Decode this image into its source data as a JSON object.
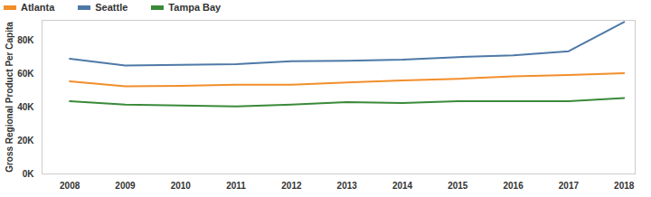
{
  "chart_data": {
    "type": "line",
    "y_label": "Gross Regional Product Per Capita",
    "x": [
      2008,
      2009,
      2010,
      2011,
      2012,
      2013,
      2014,
      2015,
      2016,
      2017,
      2018
    ],
    "series": [
      {
        "name": "Atlanta",
        "color": "#f28e2b",
        "values": [
          55500,
          52500,
          52800,
          53500,
          53500,
          54800,
          56000,
          57000,
          58500,
          59300,
          60300
        ]
      },
      {
        "name": "Seattle",
        "color": "#4e79a7",
        "values": [
          69000,
          65000,
          65300,
          65800,
          67500,
          67800,
          68500,
          70000,
          71000,
          73500,
          91000
        ]
      },
      {
        "name": "Tampa Bay",
        "color": "#3a8a3a",
        "values": [
          43500,
          41500,
          41000,
          40500,
          41500,
          43000,
          42500,
          43500,
          43500,
          43500,
          45500
        ]
      }
    ],
    "xlim": [
      2007.5,
      2018.2
    ],
    "xticks": [
      2008,
      2009,
      2010,
      2011,
      2012,
      2013,
      2014,
      2015,
      2016,
      2017,
      2018
    ],
    "ylim": [
      0,
      92000
    ],
    "yticks": [
      {
        "value": 0,
        "label": "0K"
      },
      {
        "value": 20000,
        "label": "20K"
      },
      {
        "value": 40000,
        "label": "40K"
      },
      {
        "value": 60000,
        "label": "60K"
      },
      {
        "value": 80000,
        "label": "80K"
      }
    ],
    "grid": false,
    "legend": "top-left"
  }
}
